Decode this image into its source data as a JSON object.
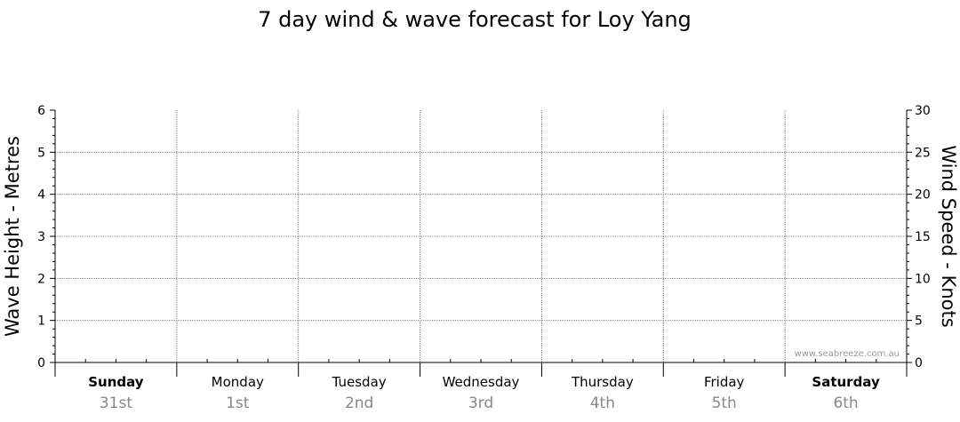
{
  "chart_data": {
    "type": "line",
    "title": "7 day wind & wave forecast for Loy Yang",
    "ylabel_left": "Wave Height - Metres",
    "ylabel_right": "Wind Speed - Knots",
    "ylim_left": [
      0,
      6
    ],
    "ylim_right": [
      0,
      30
    ],
    "yticks_left": [
      "0",
      "1",
      "2",
      "3",
      "4",
      "5",
      "6"
    ],
    "yticks_right": [
      "0",
      "5",
      "10",
      "15",
      "20",
      "25",
      "30"
    ],
    "grid": true,
    "days": [
      {
        "name": "Sunday",
        "date": "31st",
        "weekend": true
      },
      {
        "name": "Monday",
        "date": "1st",
        "weekend": false
      },
      {
        "name": "Tuesday",
        "date": "2nd",
        "weekend": false
      },
      {
        "name": "Wednesday",
        "date": "3rd",
        "weekend": false
      },
      {
        "name": "Thursday",
        "date": "4th",
        "weekend": false
      },
      {
        "name": "Friday",
        "date": "5th",
        "weekend": false
      },
      {
        "name": "Saturday",
        "date": "6th",
        "weekend": true
      }
    ],
    "series": [],
    "watermark": "www.seabreeze.com.au"
  }
}
